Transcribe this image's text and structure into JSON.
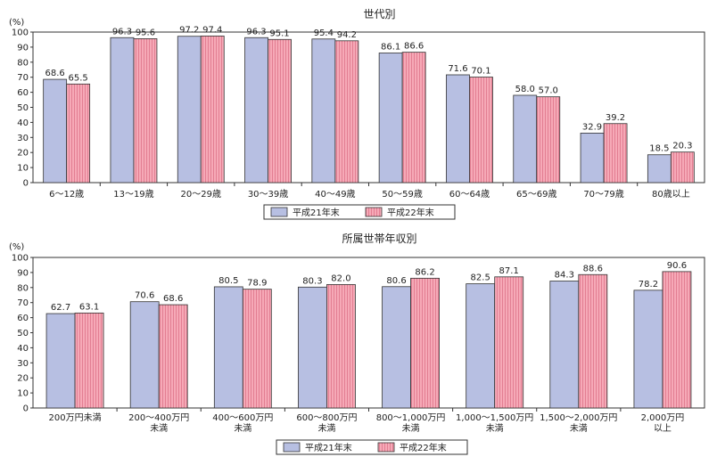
{
  "chart_data": [
    {
      "type": "bar",
      "title": "世代別",
      "ylabel": "(%)",
      "ylim": [
        0,
        100
      ],
      "yticks": [
        0,
        10,
        20,
        30,
        40,
        50,
        60,
        70,
        80,
        90,
        100
      ],
      "categories": [
        "6～12歳",
        "13～19歳",
        "20～29歳",
        "30～39歳",
        "40～49歳",
        "50～59歳",
        "60～64歳",
        "65～69歳",
        "70～79歳",
        "80歳以上"
      ],
      "series": [
        {
          "name": "平成21年末",
          "color": "#b7bfe2",
          "values": [
            68.6,
            96.3,
            97.2,
            96.3,
            95.4,
            86.1,
            71.6,
            58.0,
            32.9,
            18.5
          ]
        },
        {
          "name": "平成22年末",
          "color": "#f6a9b7",
          "values": [
            65.5,
            95.6,
            97.4,
            95.1,
            94.2,
            86.6,
            70.1,
            57.0,
            39.2,
            20.3
          ]
        }
      ],
      "labels": [
        [
          "68.6",
          "96.3",
          "97.2",
          "96.3",
          "95.4",
          "86.1",
          "71.6",
          "58.0",
          "32.9",
          "18.5"
        ],
        [
          "65.5",
          "95.6",
          "97.4",
          "95.1",
          "94.2",
          "86.6",
          "70.1",
          "57.0",
          "39.2",
          "20.3"
        ]
      ],
      "grid": false,
      "legend": "bottom"
    },
    {
      "type": "bar",
      "title": "所属世帯年収別",
      "ylabel": "(%)",
      "ylim": [
        0,
        100
      ],
      "yticks": [
        0,
        10,
        20,
        30,
        40,
        50,
        60,
        70,
        80,
        90,
        100
      ],
      "categories": [
        [
          "200万円未満"
        ],
        [
          "200～400万円",
          "未満"
        ],
        [
          "400～600万円",
          "未満"
        ],
        [
          "600～800万円",
          "未満"
        ],
        [
          "800～1,000万円",
          "未満"
        ],
        [
          "1,000～1,500万円",
          "未満"
        ],
        [
          "1,500～2,000万円",
          "未満"
        ],
        [
          "2,000万円",
          "以上"
        ]
      ],
      "series": [
        {
          "name": "平成21年末",
          "color": "#b7bfe2",
          "values": [
            62.7,
            70.6,
            80.5,
            80.3,
            80.6,
            82.5,
            84.3,
            78.2
          ]
        },
        {
          "name": "平成22年末",
          "color": "#f6a9b7",
          "values": [
            63.1,
            68.6,
            78.9,
            82.0,
            86.2,
            87.1,
            88.6,
            90.6
          ]
        }
      ],
      "labels": [
        [
          "62.7",
          "70.6",
          "80.5",
          "80.3",
          "80.6",
          "82.5",
          "84.3",
          "78.2"
        ],
        [
          "63.1",
          "68.6",
          "78.9",
          "82.0",
          "86.2",
          "87.1",
          "88.6",
          "90.6"
        ]
      ],
      "grid": false,
      "legend": "bottom"
    }
  ]
}
